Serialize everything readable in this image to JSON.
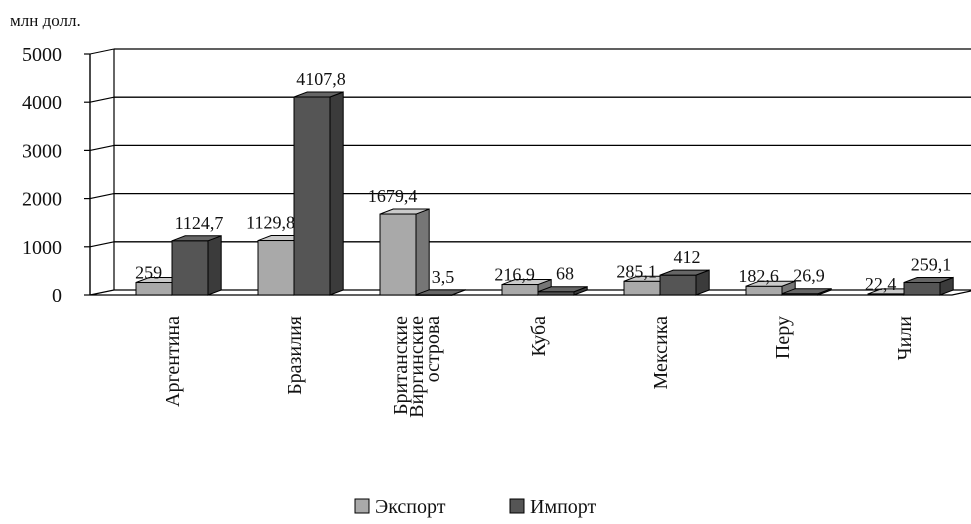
{
  "chart_data": {
    "type": "bar",
    "unit_label": "млн долл.",
    "categories": [
      [
        "Аргентина"
      ],
      [
        "Бразилия"
      ],
      [
        "Британские",
        "Виргинские",
        "острова"
      ],
      [
        "Куба"
      ],
      [
        "Мексика"
      ],
      [
        "Перу"
      ],
      [
        "Чили"
      ]
    ],
    "series": [
      {
        "name": "Экспорт",
        "color": "#a9a9a9",
        "values": [
          259,
          1129.8,
          1679.4,
          216.9,
          285.1,
          182.6,
          22.4
        ],
        "labels": [
          "259",
          "1129,8",
          "1679,4",
          "216,9",
          "285,1",
          "182,6",
          "22,4"
        ]
      },
      {
        "name": "Импорт",
        "color": "#555555",
        "values": [
          1124.7,
          4107.8,
          3.5,
          68,
          412,
          26.9,
          259.1
        ],
        "labels": [
          "1124,7",
          "4107,8",
          "3,5",
          "68",
          "412",
          "26,9",
          "259,1"
        ]
      }
    ],
    "ylim": [
      0,
      5000
    ],
    "yticks": [
      0,
      1000,
      2000,
      3000,
      4000,
      5000
    ],
    "grid": true,
    "legend": "bottom"
  }
}
